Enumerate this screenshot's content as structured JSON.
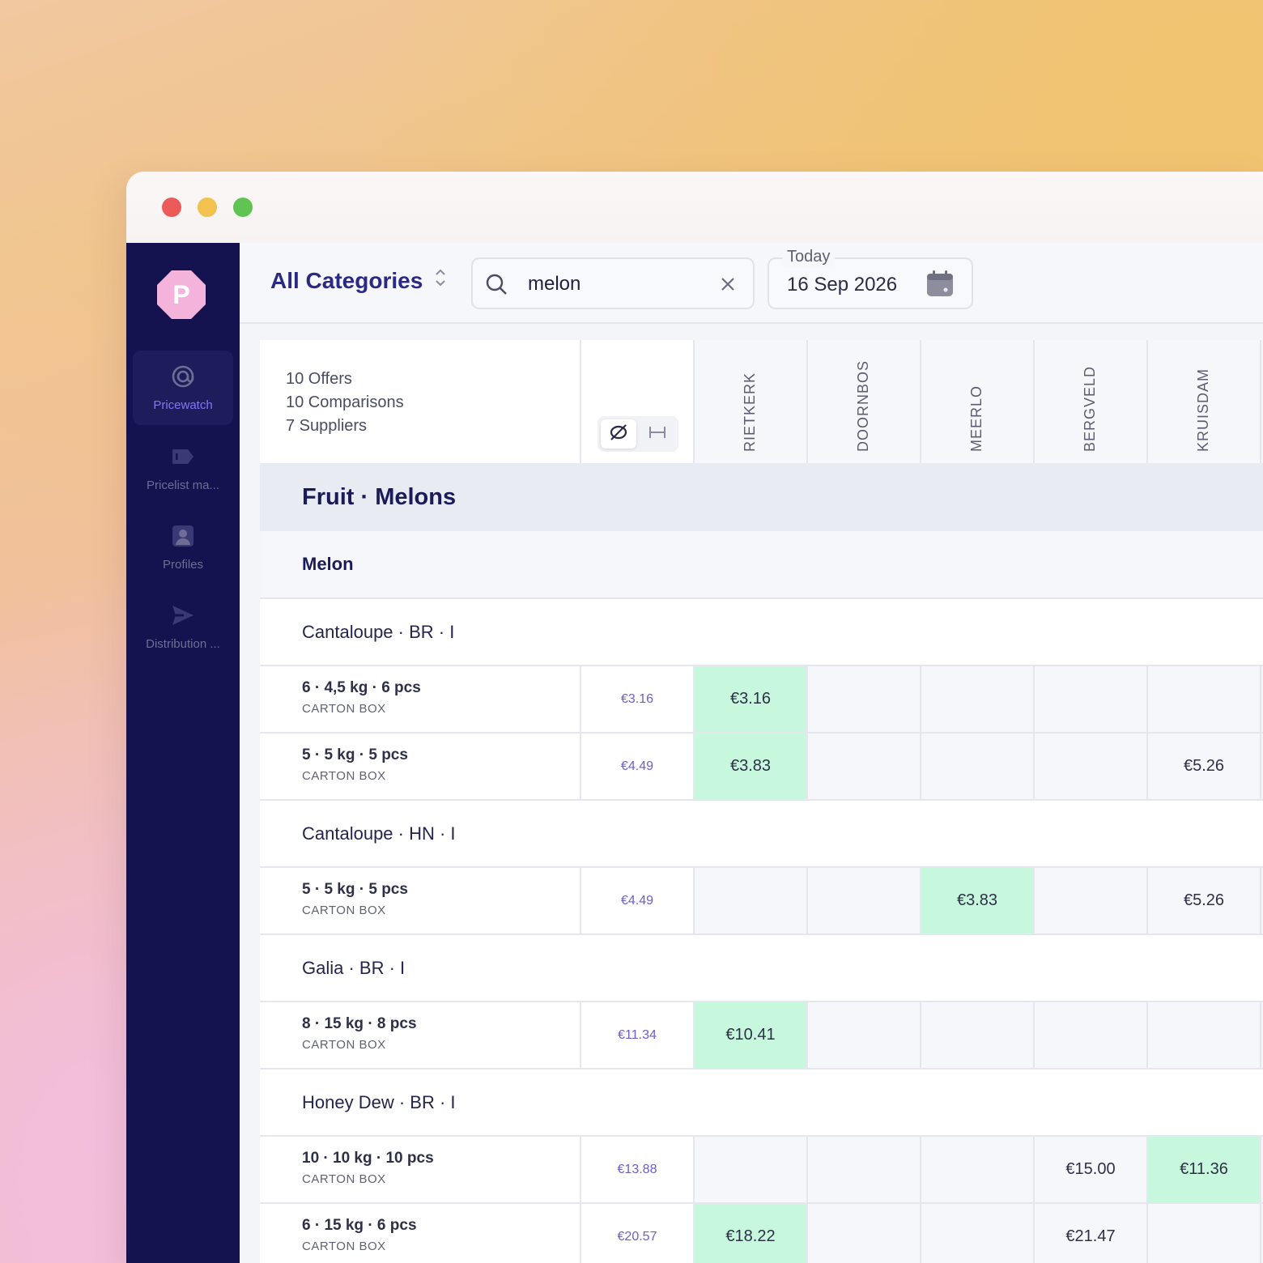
{
  "window": {
    "controls": [
      "close",
      "minimize",
      "maximize"
    ]
  },
  "sidebar": {
    "logo_letter": "P",
    "items": [
      {
        "label": "Pricewatch",
        "icon": "at-target-icon",
        "active": true
      },
      {
        "label": "Pricelist ma...",
        "icon": "tag-icon",
        "active": false
      },
      {
        "label": "Profiles",
        "icon": "user-icon",
        "active": false
      },
      {
        "label": "Distribution ...",
        "icon": "send-icon",
        "active": false
      }
    ]
  },
  "toolbar": {
    "category": "All Categories",
    "search_value": "melon",
    "date_label": "Today",
    "date_value": "16 Sep 2026"
  },
  "summary": {
    "offers": "10 Offers",
    "comparisons": "10 Comparisons",
    "suppliers": "7 Suppliers"
  },
  "suppliers": [
    "RIETKERK",
    "DOORNBOS",
    "MEERLO",
    "BERGVELD",
    "KRUISDAM"
  ],
  "category_title": "Fruit · Melons",
  "subcategory": "Melon",
  "products": [
    {
      "name": "Cantaloupe · BR · I",
      "offers": [
        {
          "pack": "6 · 4,5 kg · 6 pcs",
          "box": "CARTON BOX",
          "avg": "€3.16",
          "prices": [
            "€3.16",
            "",
            "",
            "",
            ""
          ],
          "best": 0
        },
        {
          "pack": "5 · 5 kg · 5 pcs",
          "box": "CARTON BOX",
          "avg": "€4.49",
          "prices": [
            "€3.83",
            "",
            "",
            "",
            "€5.26"
          ],
          "best": 0
        }
      ]
    },
    {
      "name": "Cantaloupe · HN · I",
      "offers": [
        {
          "pack": "5 · 5 kg · 5 pcs",
          "box": "CARTON BOX",
          "avg": "€4.49",
          "prices": [
            "",
            "",
            "€3.83",
            "",
            "€5.26"
          ],
          "best": 2
        }
      ]
    },
    {
      "name": "Galia · BR · I",
      "offers": [
        {
          "pack": "8 · 15 kg · 8 pcs",
          "box": "CARTON BOX",
          "avg": "€11.34",
          "prices": [
            "€10.41",
            "",
            "",
            "",
            ""
          ],
          "best": 0
        }
      ]
    },
    {
      "name": "Honey Dew · BR · I",
      "offers": [
        {
          "pack": "10 · 10 kg · 10 pcs",
          "box": "CARTON BOX",
          "avg": "€13.88",
          "prices": [
            "",
            "",
            "",
            "€15.00",
            "€11.36"
          ],
          "best": 4
        },
        {
          "pack": "6 · 15 kg · 6 pcs",
          "box": "CARTON BOX",
          "avg": "€20.57",
          "prices": [
            "€18.22",
            "",
            "",
            "€21.47",
            ""
          ],
          "best": 0
        }
      ]
    }
  ],
  "colors": {
    "sidebar_bg": "#14134f",
    "accent": "#7f79f2",
    "best_price_bg": "#c7f7dd",
    "logo": "#f3b3da"
  }
}
